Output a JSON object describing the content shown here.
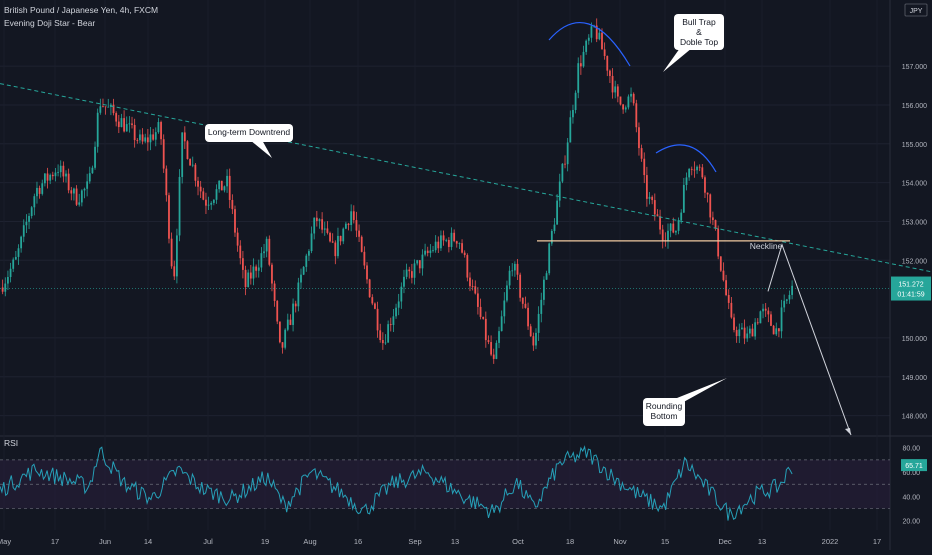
{
  "header": {
    "symbol_line": "British Pound / Japanese Yen, 4h, FXCM",
    "indicator_line": "Evening Doji Star - Bear"
  },
  "currency_badge": "JPY",
  "chart_data": {
    "type": "candlestick",
    "symbol": "GBPJPY",
    "timeframe": "4h",
    "y_ticks": [
      "157.000",
      "156.000",
      "155.000",
      "154.000",
      "153.000",
      "152.000",
      "150.000",
      "149.000",
      "148.000"
    ],
    "ylim": [
      147.5,
      158.6
    ],
    "x_ticks": [
      "May",
      "17",
      "Jun",
      "14",
      "Jul",
      "19",
      "Aug",
      "16",
      "Sep",
      "13",
      "Oct",
      "18",
      "Nov",
      "15",
      "Dec",
      "13",
      "2022",
      "17"
    ],
    "last_price": "151.272",
    "countdown": "01:41:59",
    "colors": {
      "up": "#26a69a",
      "down": "#ef5350",
      "background": "#131722",
      "rsi_line": "#26a0b8"
    },
    "path_points": [
      {
        "t": 0,
        "p": 151.3
      },
      {
        "t": 0.018,
        "p": 152.0
      },
      {
        "t": 0.04,
        "p": 153.8
      },
      {
        "t": 0.065,
        "p": 154.4
      },
      {
        "t": 0.085,
        "p": 153.6
      },
      {
        "t": 0.1,
        "p": 153.9
      },
      {
        "t": 0.112,
        "p": 156.1
      },
      {
        "t": 0.135,
        "p": 155.6
      },
      {
        "t": 0.16,
        "p": 155.0
      },
      {
        "t": 0.18,
        "p": 155.4
      },
      {
        "t": 0.195,
        "p": 151.4
      },
      {
        "t": 0.205,
        "p": 155.2
      },
      {
        "t": 0.23,
        "p": 153.5
      },
      {
        "t": 0.255,
        "p": 154.0
      },
      {
        "t": 0.275,
        "p": 151.3
      },
      {
        "t": 0.3,
        "p": 152.4
      },
      {
        "t": 0.315,
        "p": 149.6
      },
      {
        "t": 0.335,
        "p": 151.2
      },
      {
        "t": 0.355,
        "p": 153.1
      },
      {
        "t": 0.375,
        "p": 152.2
      },
      {
        "t": 0.395,
        "p": 153.3
      },
      {
        "t": 0.41,
        "p": 151.7
      },
      {
        "t": 0.43,
        "p": 149.9
      },
      {
        "t": 0.455,
        "p": 151.5
      },
      {
        "t": 0.49,
        "p": 152.4
      },
      {
        "t": 0.515,
        "p": 152.6
      },
      {
        "t": 0.53,
        "p": 151.3
      },
      {
        "t": 0.555,
        "p": 149.3
      },
      {
        "t": 0.575,
        "p": 152.0
      },
      {
        "t": 0.6,
        "p": 149.8
      },
      {
        "t": 0.615,
        "p": 152.0
      },
      {
        "t": 0.635,
        "p": 154.7
      },
      {
        "t": 0.65,
        "p": 157.0
      },
      {
        "t": 0.668,
        "p": 158.0
      },
      {
        "t": 0.68,
        "p": 157.2
      },
      {
        "t": 0.695,
        "p": 156.0
      },
      {
        "t": 0.71,
        "p": 156.2
      },
      {
        "t": 0.725,
        "p": 153.8
      },
      {
        "t": 0.745,
        "p": 152.7
      },
      {
        "t": 0.76,
        "p": 152.8
      },
      {
        "t": 0.775,
        "p": 154.6
      },
      {
        "t": 0.79,
        "p": 154.2
      },
      {
        "t": 0.805,
        "p": 152.5
      },
      {
        "t": 0.822,
        "p": 150.3
      },
      {
        "t": 0.84,
        "p": 150.0
      },
      {
        "t": 0.855,
        "p": 150.7
      },
      {
        "t": 0.872,
        "p": 150.2
      },
      {
        "t": 0.89,
        "p": 151.3
      }
    ],
    "rsi": {
      "label": "RSI",
      "ticks": [
        "80.00",
        "60.00",
        "40.00",
        "20.00"
      ],
      "ylim": [
        14,
        88
      ],
      "band": [
        30,
        70
      ],
      "value": "65.71",
      "path_points": [
        {
          "t": 0,
          "p": 45
        },
        {
          "t": 0.04,
          "p": 62
        },
        {
          "t": 0.07,
          "p": 55
        },
        {
          "t": 0.1,
          "p": 48
        },
        {
          "t": 0.112,
          "p": 78
        },
        {
          "t": 0.14,
          "p": 50
        },
        {
          "t": 0.17,
          "p": 38
        },
        {
          "t": 0.2,
          "p": 62
        },
        {
          "t": 0.23,
          "p": 45
        },
        {
          "t": 0.26,
          "p": 38
        },
        {
          "t": 0.3,
          "p": 56
        },
        {
          "t": 0.32,
          "p": 32
        },
        {
          "t": 0.35,
          "p": 60
        },
        {
          "t": 0.38,
          "p": 45
        },
        {
          "t": 0.41,
          "p": 28
        },
        {
          "t": 0.44,
          "p": 50
        },
        {
          "t": 0.48,
          "p": 60
        },
        {
          "t": 0.52,
          "p": 40
        },
        {
          "t": 0.555,
          "p": 27
        },
        {
          "t": 0.58,
          "p": 52
        },
        {
          "t": 0.6,
          "p": 30
        },
        {
          "t": 0.63,
          "p": 68
        },
        {
          "t": 0.66,
          "p": 76
        },
        {
          "t": 0.69,
          "p": 55
        },
        {
          "t": 0.72,
          "p": 40
        },
        {
          "t": 0.745,
          "p": 30
        },
        {
          "t": 0.77,
          "p": 68
        },
        {
          "t": 0.8,
          "p": 42
        },
        {
          "t": 0.82,
          "p": 25
        },
        {
          "t": 0.85,
          "p": 42
        },
        {
          "t": 0.875,
          "p": 48
        },
        {
          "t": 0.89,
          "p": 65
        }
      ]
    },
    "annotations": [
      {
        "text": "Long-term Downtrend"
      },
      {
        "text": "Bull Trap\n&\nDoble Top"
      },
      {
        "text": "Neckline"
      },
      {
        "text": "Rounding\nBottom"
      }
    ]
  }
}
